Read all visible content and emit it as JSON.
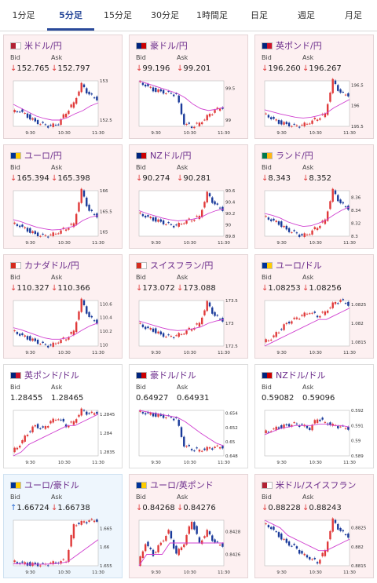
{
  "tabs": [
    {
      "label": "1分足",
      "active": false
    },
    {
      "label": "5分足",
      "active": true
    },
    {
      "label": "15分足",
      "active": false
    },
    {
      "label": "30分足",
      "active": false
    },
    {
      "label": "1時間足",
      "active": false
    },
    {
      "label": "日足",
      "active": false
    },
    {
      "label": "週足",
      "active": false
    },
    {
      "label": "月足",
      "active": false
    }
  ],
  "labels": {
    "bid": "Bid",
    "ask": "Ask"
  },
  "pairs": [
    {
      "name": "米ドル/円",
      "bg": "red",
      "bid": "152.765",
      "ask": "152.797",
      "dir": "down",
      "yticks": [
        "153",
        "152.5"
      ],
      "xticks": [
        "9:30",
        "10:30",
        "11:30"
      ],
      "trend": [
        152.6,
        152.62,
        152.55,
        152.48,
        152.44,
        152.42,
        152.46,
        152.6,
        152.72,
        152.95,
        152.82,
        152.77
      ],
      "ma": [
        152.7,
        152.65,
        152.6,
        152.55,
        152.52,
        152.5,
        152.5,
        152.53,
        152.58,
        152.62,
        152.68,
        152.72
      ]
    },
    {
      "name": "豪ドル/円",
      "bg": "red",
      "bid": "99.196",
      "ask": "99.201",
      "dir": "down",
      "yticks": [
        "99.5",
        "99"
      ],
      "xticks": [
        "9:30",
        "10:30",
        "11:30"
      ],
      "trend": [
        99.6,
        99.55,
        99.48,
        99.45,
        99.42,
        99.4,
        98.95,
        98.9,
        98.95,
        99.05,
        99.15,
        99.2
      ],
      "ma": [
        99.62,
        99.58,
        99.54,
        99.5,
        99.46,
        99.42,
        99.35,
        99.25,
        99.18,
        99.15,
        99.17,
        99.2
      ]
    },
    {
      "name": "英ポンド/円",
      "bg": "red",
      "bid": "196.260",
      "ask": "196.267",
      "dir": "down",
      "yticks": [
        "196.5",
        "196",
        "195.5"
      ],
      "xticks": [
        "9:30",
        "10:30",
        "11:30"
      ],
      "trend": [
        195.8,
        195.7,
        195.6,
        195.55,
        195.5,
        195.52,
        195.6,
        195.7,
        195.8,
        196.6,
        196.3,
        196.26
      ],
      "ma": [
        195.9,
        195.85,
        195.8,
        195.76,
        195.72,
        195.7,
        195.72,
        195.76,
        195.82,
        195.95,
        196.05,
        196.15
      ]
    },
    {
      "name": "ユーロ/円",
      "bg": "red",
      "bid": "165.394",
      "ask": "165.398",
      "dir": "down",
      "yticks": [
        "166",
        "165.5",
        "165"
      ],
      "xticks": [
        "9:30",
        "10:30",
        "11:30"
      ],
      "trend": [
        165.2,
        165.15,
        165.05,
        164.95,
        164.9,
        164.92,
        165.0,
        165.1,
        165.2,
        166.0,
        165.5,
        165.39
      ],
      "ma": [
        165.3,
        165.25,
        165.18,
        165.12,
        165.08,
        165.05,
        165.06,
        165.1,
        165.15,
        165.28,
        165.36,
        165.4
      ]
    },
    {
      "name": "NZドル/円",
      "bg": "red",
      "bid": "90.274",
      "ask": "90.281",
      "dir": "down",
      "yticks": [
        "90.6",
        "90.4",
        "90.2",
        "90",
        "89.8"
      ],
      "xticks": [
        "9:30",
        "10:30",
        "11:30"
      ],
      "trend": [
        90.2,
        90.15,
        90.1,
        90.05,
        90.0,
        89.98,
        90.05,
        90.1,
        90.15,
        90.55,
        90.35,
        90.27
      ],
      "ma": [
        90.25,
        90.2,
        90.16,
        90.12,
        90.09,
        90.07,
        90.08,
        90.1,
        90.13,
        90.2,
        90.25,
        90.28
      ]
    },
    {
      "name": "ランド/円",
      "bg": "red",
      "bid": "8.343",
      "ask": "8.352",
      "dir": "down",
      "yticks": [
        "8.36",
        "8.34",
        "8.32",
        "8.3"
      ],
      "xticks": [
        "9:30",
        "10:30",
        "11:30"
      ],
      "trend": [
        8.33,
        8.325,
        8.32,
        8.31,
        8.305,
        8.3,
        8.305,
        8.315,
        8.325,
        8.37,
        8.35,
        8.343
      ],
      "ma": [
        8.335,
        8.332,
        8.328,
        8.322,
        8.318,
        8.315,
        8.316,
        8.32,
        8.325,
        8.333,
        8.34,
        8.345
      ]
    },
    {
      "name": "カナダドル/円",
      "bg": "red",
      "bid": "110.327",
      "ask": "110.366",
      "dir": "down",
      "yticks": [
        "110.6",
        "110.4",
        "110.2",
        "110"
      ],
      "xticks": [
        "9:30",
        "10:30",
        "11:30"
      ],
      "trend": [
        110.2,
        110.15,
        110.1,
        110.05,
        110.0,
        109.98,
        110.05,
        110.1,
        110.2,
        110.65,
        110.4,
        110.33
      ],
      "ma": [
        110.25,
        110.22,
        110.18,
        110.14,
        110.1,
        110.08,
        110.08,
        110.1,
        110.15,
        110.22,
        110.28,
        110.32
      ]
    },
    {
      "name": "スイスフラン/円",
      "bg": "red",
      "bid": "173.072",
      "ask": "173.088",
      "dir": "down",
      "yticks": [
        "173.5",
        "173",
        "172.5"
      ],
      "xticks": [
        "9:30",
        "10:30",
        "11:30"
      ],
      "trend": [
        173.0,
        172.9,
        172.85,
        172.75,
        172.7,
        172.72,
        172.8,
        172.9,
        173.0,
        173.45,
        173.15,
        173.07
      ],
      "ma": [
        173.05,
        173.0,
        172.95,
        172.9,
        172.86,
        172.84,
        172.85,
        172.88,
        172.92,
        173.0,
        173.05,
        173.08
      ]
    },
    {
      "name": "ユーロ/ドル",
      "bg": "red",
      "bid": "1.08253",
      "ask": "1.08256",
      "dir": "down",
      "yticks": [
        "1.0825",
        "1.082",
        "1.0815"
      ],
      "xticks": [
        "9:30",
        "10:30",
        "11:30"
      ],
      "trend": [
        1.0815,
        1.0816,
        1.0818,
        1.082,
        1.0821,
        1.0822,
        1.0823,
        1.0822,
        1.0823,
        1.0825,
        1.0826,
        1.0825
      ],
      "ma": [
        1.0814,
        1.0815,
        1.0816,
        1.0817,
        1.0818,
        1.0819,
        1.082,
        1.0821,
        1.0821,
        1.0822,
        1.0823,
        1.0824
      ]
    },
    {
      "name": "英ポンド/ドル",
      "bg": "white",
      "bid": "1.28455",
      "ask": "1.28465",
      "dir": "none",
      "yticks": [
        "1.2845",
        "1.284",
        "1.2835"
      ],
      "xticks": [
        "9:30",
        "10:30",
        "11:30"
      ],
      "trend": [
        1.2835,
        1.2837,
        1.284,
        1.2842,
        1.2841,
        1.2843,
        1.2844,
        1.2842,
        1.2843,
        1.2846,
        1.2845,
        1.28455
      ],
      "ma": [
        1.2834,
        1.2835,
        1.2837,
        1.2838,
        1.2839,
        1.284,
        1.2841,
        1.2842,
        1.2842,
        1.2843,
        1.2844,
        1.2845
      ]
    },
    {
      "name": "豪ドル/ドル",
      "bg": "white",
      "bid": "0.64927",
      "ask": "0.64931",
      "dir": "none",
      "yticks": [
        "0.654",
        "0.652",
        "0.65",
        "0.648"
      ],
      "xticks": [
        "9:30",
        "10:30",
        "11:30"
      ],
      "trend": [
        0.6542,
        0.654,
        0.6538,
        0.6536,
        0.6534,
        0.6532,
        0.6495,
        0.649,
        0.6488,
        0.649,
        0.6492,
        0.64927
      ],
      "ma": [
        0.6544,
        0.6542,
        0.654,
        0.6538,
        0.6536,
        0.6534,
        0.6528,
        0.652,
        0.6512,
        0.6505,
        0.6498,
        0.6494
      ]
    },
    {
      "name": "NZドル/ドル",
      "bg": "white",
      "bid": "0.59082",
      "ask": "0.59096",
      "dir": "none",
      "yticks": [
        "0.592",
        "0.591",
        "0.59",
        "0.589"
      ],
      "xticks": [
        "9:30",
        "10:30",
        "11:30"
      ],
      "trend": [
        0.5905,
        0.5907,
        0.5909,
        0.591,
        0.5911,
        0.591,
        0.5908,
        0.5915,
        0.5912,
        0.591,
        0.5909,
        0.59082
      ],
      "ma": [
        0.5904,
        0.5906,
        0.5908,
        0.5909,
        0.591,
        0.591,
        0.591,
        0.5911,
        0.5911,
        0.591,
        0.591,
        0.5909
      ]
    },
    {
      "name": "ユーロ/豪ドル",
      "bg": "blue",
      "bid": "1.66724",
      "ask": "1.66738",
      "dir": "up",
      "yticks": [
        "1.665",
        "1.66",
        "1.655"
      ],
      "xticks": [
        "9:30",
        "10:30",
        "11:30"
      ],
      "trend": [
        1.656,
        1.6558,
        1.6555,
        1.6553,
        1.6552,
        1.6556,
        1.656,
        1.6565,
        1.666,
        1.6665,
        1.667,
        1.6672
      ],
      "ma": [
        1.6555,
        1.6555,
        1.6554,
        1.6554,
        1.6554,
        1.6555,
        1.6557,
        1.656,
        1.6575,
        1.659,
        1.6605,
        1.662
      ]
    },
    {
      "name": "ユーロ/英ポンド",
      "bg": "red",
      "bid": "0.84268",
      "ask": "0.84276",
      "dir": "down",
      "yticks": [
        "0.8428",
        "0.8426"
      ],
      "xticks": [
        "9:30",
        "10:30",
        "11:30"
      ],
      "trend": [
        0.8425,
        0.8427,
        0.8426,
        0.8427,
        0.8428,
        0.8426,
        0.8427,
        0.8429,
        0.8427,
        0.8428,
        0.8427,
        0.84268
      ],
      "ma": [
        0.8425,
        0.8426,
        0.8426,
        0.8426,
        0.8427,
        0.8427,
        0.8427,
        0.8427,
        0.8427,
        0.8427,
        0.8427,
        0.8427
      ]
    },
    {
      "name": "米ドル/スイスフラン",
      "bg": "red",
      "bid": "0.88228",
      "ask": "0.88243",
      "dir": "down",
      "yticks": [
        "0.8825",
        "0.882",
        "0.8815"
      ],
      "xticks": [
        "9:30",
        "10:30",
        "11:30"
      ],
      "trend": [
        0.8826,
        0.8825,
        0.8823,
        0.8821,
        0.882,
        0.8818,
        0.8817,
        0.8816,
        0.8819,
        0.8827,
        0.8824,
        0.88228
      ],
      "ma": [
        0.8827,
        0.8826,
        0.8825,
        0.8823,
        0.8822,
        0.8821,
        0.882,
        0.8819,
        0.8819,
        0.882,
        0.8821,
        0.8822
      ]
    }
  ]
}
